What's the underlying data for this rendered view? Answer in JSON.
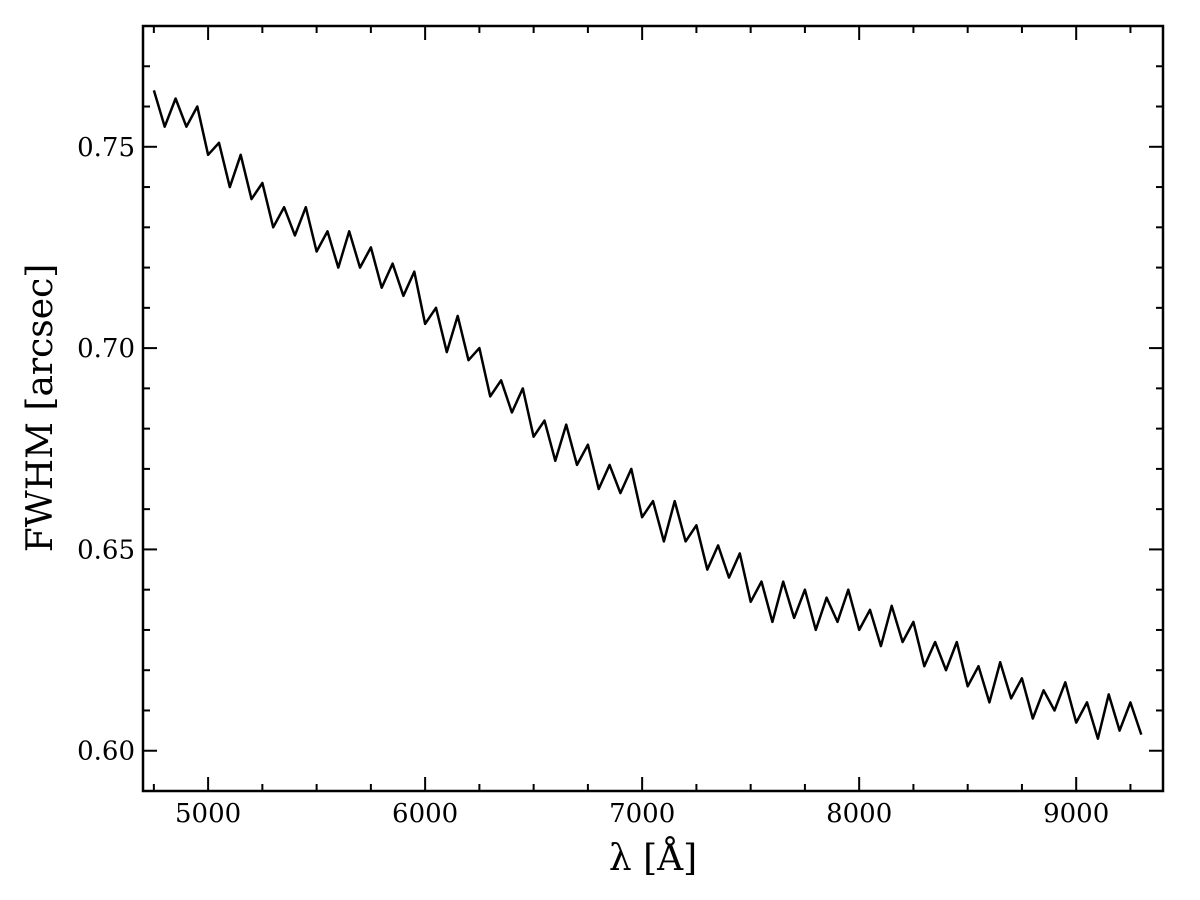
{
  "chart_data": {
    "type": "line",
    "xlabel": "λ [Å]",
    "ylabel": "FWHM [arcsec]",
    "color": "#000000",
    "x": [
      4750,
      4800,
      4850,
      4900,
      4950,
      5000,
      5050,
      5100,
      5150,
      5200,
      5250,
      5300,
      5350,
      5400,
      5450,
      5500,
      5550,
      5600,
      5650,
      5700,
      5750,
      5800,
      5850,
      5900,
      5950,
      6000,
      6050,
      6100,
      6150,
      6200,
      6250,
      6300,
      6350,
      6400,
      6450,
      6500,
      6550,
      6600,
      6650,
      6700,
      6750,
      6800,
      6850,
      6900,
      6950,
      7000,
      7050,
      7100,
      7150,
      7200,
      7250,
      7300,
      7350,
      7400,
      7450,
      7500,
      7550,
      7600,
      7650,
      7700,
      7750,
      7800,
      7850,
      7900,
      7950,
      8000,
      8050,
      8100,
      8150,
      8200,
      8250,
      8300,
      8350,
      8400,
      8450,
      8500,
      8550,
      8600,
      8650,
      8700,
      8750,
      8800,
      8850,
      8900,
      8950,
      9000,
      9050,
      9100,
      9150,
      9200,
      9250,
      9300
    ],
    "values": [
      0.764,
      0.755,
      0.762,
      0.755,
      0.76,
      0.748,
      0.751,
      0.74,
      0.748,
      0.737,
      0.741,
      0.73,
      0.735,
      0.728,
      0.735,
      0.724,
      0.729,
      0.72,
      0.729,
      0.72,
      0.725,
      0.715,
      0.721,
      0.713,
      0.719,
      0.706,
      0.71,
      0.699,
      0.708,
      0.697,
      0.7,
      0.688,
      0.692,
      0.684,
      0.69,
      0.678,
      0.682,
      0.672,
      0.681,
      0.671,
      0.676,
      0.665,
      0.671,
      0.664,
      0.67,
      0.658,
      0.662,
      0.652,
      0.662,
      0.652,
      0.656,
      0.645,
      0.651,
      0.643,
      0.649,
      0.637,
      0.642,
      0.632,
      0.642,
      0.633,
      0.64,
      0.63,
      0.638,
      0.632,
      0.64,
      0.63,
      0.635,
      0.626,
      0.636,
      0.627,
      0.632,
      0.621,
      0.627,
      0.62,
      0.627,
      0.616,
      0.621,
      0.612,
      0.622,
      0.613,
      0.618,
      0.608,
      0.615,
      0.61,
      0.617,
      0.607,
      0.612,
      0.603,
      0.614,
      0.605,
      0.612,
      0.604
    ],
    "xlim": [
      4700,
      9400
    ],
    "ylim": [
      0.59,
      0.78
    ],
    "xticks": [
      5000,
      6000,
      7000,
      8000,
      9000
    ],
    "yticks": [
      {
        "value": 0.6,
        "label": "0.60"
      },
      0.65,
      {
        "value": 0.7,
        "label": "0.70"
      },
      0.75
    ],
    "xminorticks": [
      4750,
      5250,
      5500,
      5750,
      6250,
      6500,
      6750,
      7250,
      7500,
      7750,
      8250,
      8500,
      8750,
      9250
    ],
    "yminorticks": [
      0.61,
      0.62,
      0.63,
      0.64,
      0.66,
      0.67,
      0.68,
      0.69,
      0.71,
      0.72,
      0.73,
      0.74,
      0.76,
      0.77
    ],
    "grid": false
  }
}
